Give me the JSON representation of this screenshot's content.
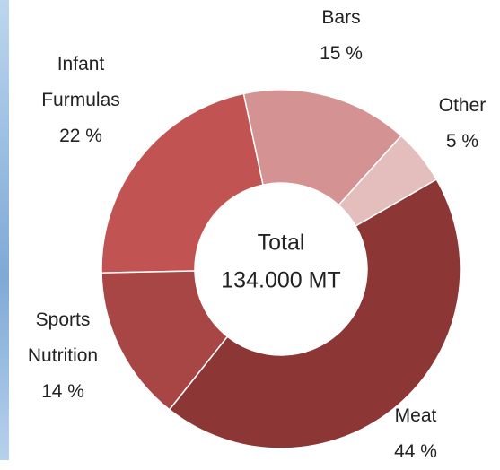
{
  "chart_data": {
    "type": "donut",
    "categories": [
      "Bars",
      "Other",
      "Meat",
      "Sports Nutrition",
      "Infant Furmulas"
    ],
    "values": [
      15,
      5,
      44,
      14,
      22
    ],
    "value_labels": [
      "15 %",
      "5 %",
      "44 %",
      "14 %",
      "22 %"
    ],
    "colors": [
      "#d49292",
      "#e4bdbd",
      "#8c3636",
      "#a84545",
      "#c25353"
    ],
    "center_label": "Total",
    "center_value": "134.000 MT"
  }
}
